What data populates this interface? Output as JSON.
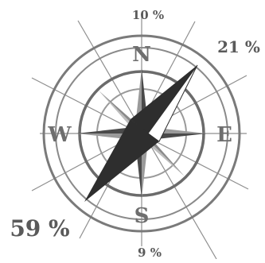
{
  "cardinals": {
    "north": "N",
    "east": "E",
    "south": "S",
    "west": "W"
  },
  "percentages": {
    "north_label": "10 %",
    "north_east_label": "21 %",
    "south_west_label": "59 %",
    "south_label": "9 %"
  },
  "needle": {
    "direction_from": "north-east",
    "direction_to": "south-west"
  },
  "colors": {
    "ring": "#6b6b6b",
    "ring_light": "#9a9a9a",
    "rays": "#8f8f8f",
    "star_dark": "#4a4a4a",
    "star_light": "#bdbdbd",
    "needle_dark": "#2e2e2e",
    "needle_light": "#ffffff",
    "text": "#5a5a5a"
  }
}
